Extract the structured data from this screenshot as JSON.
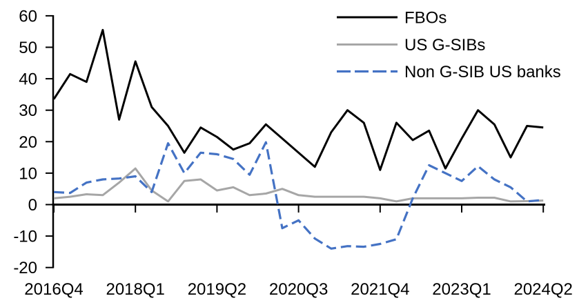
{
  "chart_data": {
    "type": "line",
    "title": "",
    "xlabel": "",
    "ylabel": "",
    "ylim": [
      -20,
      60
    ],
    "y_ticks": [
      60,
      50,
      40,
      30,
      20,
      10,
      0,
      -10,
      -20
    ],
    "grid": "off",
    "legend_position": "top-right-inside",
    "x": [
      "2016Q4",
      "2017Q1",
      "2017Q2",
      "2017Q3",
      "2017Q4",
      "2018Q1",
      "2018Q2",
      "2018Q3",
      "2018Q4",
      "2019Q1",
      "2019Q2",
      "2019Q3",
      "2019Q4",
      "2020Q1",
      "2020Q2",
      "2020Q3",
      "2020Q4",
      "2021Q1",
      "2021Q2",
      "2021Q3",
      "2021Q4",
      "2022Q1",
      "2022Q2",
      "2022Q3",
      "2022Q4",
      "2023Q1",
      "2023Q2",
      "2023Q3",
      "2023Q4",
      "2024Q1",
      "2024Q2"
    ],
    "x_tick_labels": [
      "2016Q4",
      "2018Q1",
      "2019Q2",
      "2020Q3",
      "2021Q4",
      "2023Q1",
      "2024Q2"
    ],
    "x_tick_indices": [
      0,
      5,
      10,
      15,
      20,
      25,
      30
    ],
    "series": [
      {
        "name": "FBOs",
        "color": "#000000",
        "style": "solid",
        "values": [
          33.5,
          41.5,
          39,
          55.5,
          27,
          45.5,
          31,
          25,
          16.5,
          24.5,
          21.5,
          17.5,
          19.5,
          25.5,
          21,
          16.5,
          12,
          23,
          30,
          26,
          11,
          26,
          20.5,
          23.5,
          11.5,
          21,
          30,
          25.5,
          15,
          25,
          24.5
        ]
      },
      {
        "name": "US G-SIBs",
        "color": "#A6A6A6",
        "style": "solid",
        "values": [
          2,
          2.5,
          3.3,
          3,
          7,
          11.5,
          4.5,
          1,
          7.5,
          8,
          4.5,
          5.5,
          3,
          3.5,
          5,
          3,
          2.5,
          2.5,
          2.5,
          2.5,
          2,
          1,
          2,
          2,
          2,
          2,
          2.2,
          2.2,
          1,
          1.1,
          1.3
        ]
      },
      {
        "name": "Non G-SIB US banks",
        "color": "#4472C4",
        "style": "dashed",
        "values": [
          4,
          3.7,
          7,
          8,
          8.3,
          9,
          4,
          19.5,
          10,
          16.5,
          16,
          14.5,
          9.5,
          19.8,
          -7.5,
          -5,
          -10.8,
          -14,
          -13.2,
          -13.4,
          -12.5,
          -11,
          2,
          12.5,
          10,
          7.5,
          12.2,
          8,
          5.5,
          1,
          1.5
        ]
      }
    ]
  }
}
